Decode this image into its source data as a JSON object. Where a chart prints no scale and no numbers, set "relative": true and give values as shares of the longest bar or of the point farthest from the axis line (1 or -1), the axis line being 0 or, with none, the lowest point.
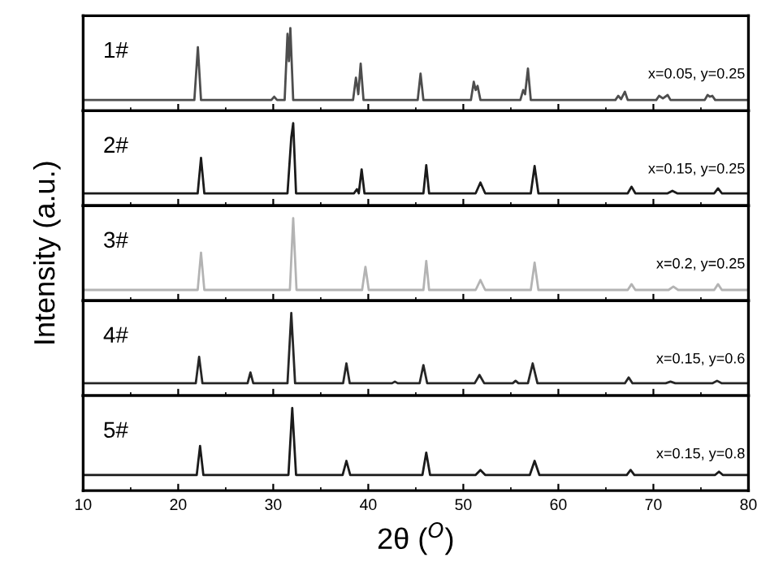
{
  "chart_data": [
    {
      "type": "line",
      "relative": true,
      "xlim": [
        10,
        80
      ],
      "xticks": [
        10,
        20,
        30,
        40,
        50,
        60,
        70,
        80
      ],
      "tick_labels": false,
      "annotations": [
        "1#",
        "x=0.05, y=0.25"
      ],
      "series": [
        {
          "color": "#4d4d4d",
          "x": [
            10,
            21.7,
            22.07,
            22.4,
            29.8,
            30.1,
            30.4,
            31.2,
            31.5,
            31.65,
            31.8,
            32.1,
            38.4,
            38.7,
            38.95,
            39.2,
            39.5,
            45.2,
            45.5,
            45.8,
            50.8,
            51.1,
            51.3,
            51.5,
            51.8,
            56.0,
            56.3,
            56.5,
            56.8,
            57.1,
            66.0,
            66.3,
            66.6,
            67.0,
            67.3,
            70.3,
            70.6,
            71.0,
            71.5,
            71.8,
            75.4,
            75.7,
            75.95,
            76.2,
            76.5,
            80
          ],
          "values": [
            0.13,
            0.13,
            0.77,
            0.13,
            0.13,
            0.17,
            0.13,
            0.13,
            0.93,
            0.6,
            1.0,
            0.13,
            0.13,
            0.4,
            0.2,
            0.57,
            0.13,
            0.13,
            0.45,
            0.13,
            0.13,
            0.35,
            0.25,
            0.3,
            0.13,
            0.13,
            0.25,
            0.2,
            0.51,
            0.13,
            0.13,
            0.18,
            0.14,
            0.23,
            0.13,
            0.13,
            0.18,
            0.15,
            0.19,
            0.13,
            0.13,
            0.19,
            0.17,
            0.18,
            0.13,
            0.13
          ]
        }
      ]
    },
    {
      "type": "line",
      "relative": true,
      "xlim": [
        10,
        80
      ],
      "xticks": [
        10,
        20,
        30,
        40,
        50,
        60,
        70,
        80
      ],
      "tick_labels": false,
      "annotations": [
        "2#",
        "x=0.15, y=0.25"
      ],
      "series": [
        {
          "color": "#1a1a1a",
          "x": [
            10,
            22.05,
            22.4,
            22.75,
            31.5,
            31.9,
            32.1,
            32.4,
            38.5,
            38.8,
            39.0,
            39.3,
            39.6,
            45.8,
            46.1,
            46.4,
            51.3,
            51.8,
            52.3,
            57.1,
            57.5,
            57.9,
            67.3,
            67.7,
            68.1,
            71.5,
            72.0,
            72.5,
            76.4,
            76.8,
            77.2,
            80
          ],
          "values": [
            0.15,
            0.15,
            0.58,
            0.15,
            0.15,
            0.83,
            1.0,
            0.15,
            0.15,
            0.2,
            0.15,
            0.44,
            0.15,
            0.15,
            0.49,
            0.15,
            0.15,
            0.28,
            0.15,
            0.15,
            0.48,
            0.15,
            0.15,
            0.23,
            0.15,
            0.15,
            0.18,
            0.15,
            0.15,
            0.21,
            0.15,
            0.15
          ]
        }
      ]
    },
    {
      "type": "line",
      "relative": true,
      "xlim": [
        10,
        80
      ],
      "xticks": [
        10,
        20,
        30,
        40,
        50,
        60,
        70,
        80
      ],
      "tick_labels": false,
      "ylabel": "Intensity (a.u.)",
      "annotations": [
        "3#",
        "x=0.2, y=0.25"
      ],
      "series": [
        {
          "color": "#b3b3b3",
          "x": [
            10,
            22.05,
            22.4,
            22.75,
            31.75,
            32.1,
            32.45,
            39.35,
            39.7,
            40.05,
            45.8,
            46.1,
            46.4,
            51.3,
            51.8,
            52.3,
            57.1,
            57.5,
            57.9,
            67.3,
            67.7,
            68.1,
            71.6,
            72.1,
            72.6,
            76.4,
            76.8,
            77.2,
            80
          ],
          "values": [
            0.13,
            0.13,
            0.58,
            0.13,
            0.13,
            1.0,
            0.13,
            0.13,
            0.41,
            0.13,
            0.13,
            0.48,
            0.13,
            0.13,
            0.25,
            0.13,
            0.13,
            0.46,
            0.13,
            0.13,
            0.2,
            0.13,
            0.13,
            0.17,
            0.13,
            0.13,
            0.2,
            0.13,
            0.13
          ]
        }
      ]
    },
    {
      "type": "line",
      "relative": true,
      "xlim": [
        10,
        80
      ],
      "xticks": [
        10,
        20,
        30,
        40,
        50,
        60,
        70,
        80
      ],
      "tick_labels": false,
      "annotations": [
        "4#",
        "x=0.15, y=0.6"
      ],
      "series": [
        {
          "color": "#262626",
          "x": [
            10,
            21.85,
            22.2,
            22.55,
            27.3,
            27.6,
            27.9,
            31.5,
            31.9,
            32.3,
            37.35,
            37.7,
            38.05,
            42.5,
            42.8,
            43.1,
            45.4,
            45.8,
            46.2,
            51.2,
            51.7,
            52.2,
            55.2,
            55.5,
            55.8,
            56.8,
            57.3,
            57.8,
            67.0,
            67.4,
            67.8,
            71.3,
            71.8,
            72.3,
            76.2,
            76.7,
            77.2,
            80
          ],
          "values": [
            0.15,
            0.15,
            0.47,
            0.15,
            0.15,
            0.28,
            0.15,
            0.15,
            1.0,
            0.15,
            0.15,
            0.39,
            0.15,
            0.15,
            0.17,
            0.15,
            0.15,
            0.37,
            0.15,
            0.15,
            0.25,
            0.15,
            0.15,
            0.18,
            0.15,
            0.15,
            0.39,
            0.15,
            0.15,
            0.22,
            0.15,
            0.15,
            0.17,
            0.15,
            0.15,
            0.18,
            0.15,
            0.15
          ]
        }
      ]
    },
    {
      "type": "line",
      "relative": true,
      "xlim": [
        10,
        80
      ],
      "xticks": [
        10,
        20,
        30,
        40,
        50,
        60,
        70,
        80
      ],
      "tick_labels": "x",
      "xlabel": "2θ ($^{O}$)",
      "annotations": [
        "5#",
        "x=0.15, y=0.8"
      ],
      "series": [
        {
          "color": "#1a1a1a",
          "x": [
            10,
            21.95,
            22.3,
            22.65,
            31.6,
            32.0,
            32.4,
            37.3,
            37.7,
            38.1,
            45.7,
            46.1,
            46.5,
            51.3,
            51.8,
            52.3,
            57.0,
            57.5,
            58.0,
            67.2,
            67.6,
            68.0,
            76.5,
            76.9,
            77.3,
            80
          ],
          "values": [
            0.19,
            0.19,
            0.54,
            0.19,
            0.19,
            1.0,
            0.19,
            0.19,
            0.36,
            0.19,
            0.19,
            0.46,
            0.19,
            0.19,
            0.25,
            0.19,
            0.19,
            0.36,
            0.19,
            0.19,
            0.25,
            0.19,
            0.19,
            0.23,
            0.19,
            0.19
          ]
        }
      ]
    }
  ]
}
